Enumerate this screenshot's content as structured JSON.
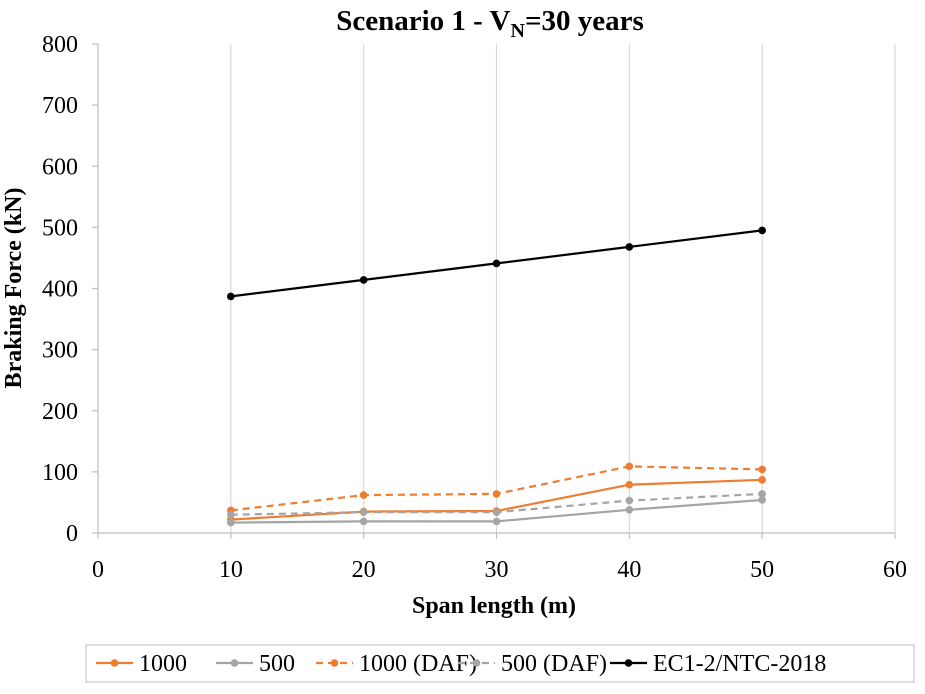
{
  "chart_data": {
    "type": "line",
    "title_prefix": "Scenario 1 - V",
    "title_sub": "N",
    "title_suffix": "=30 years",
    "xlabel": "Span length (m)",
    "ylabel": "Braking Force (kN)",
    "xlim": [
      0,
      60
    ],
    "ylim": [
      0,
      800
    ],
    "xticks": [
      0,
      10,
      20,
      30,
      40,
      50,
      60
    ],
    "yticks": [
      0,
      100,
      200,
      300,
      400,
      500,
      600,
      700,
      800
    ],
    "grid": "vertical",
    "legend_position": "bottom",
    "x": [
      10,
      20,
      30,
      40,
      50
    ],
    "series": [
      {
        "name": "1000",
        "values": [
          22,
          35,
          36,
          79,
          87
        ],
        "color": "#ED7D31",
        "dash": "solid"
      },
      {
        "name": "500",
        "values": [
          17,
          19,
          19,
          38,
          54
        ],
        "color": "#A5A5A5",
        "dash": "solid"
      },
      {
        "name": "1000 (DAF)",
        "values": [
          37,
          62,
          64,
          109,
          104
        ],
        "color": "#ED7D31",
        "dash": "dashed"
      },
      {
        "name": "500 (DAF)",
        "values": [
          30,
          34,
          34,
          53,
          64
        ],
        "color": "#A5A5A5",
        "dash": "dashed"
      },
      {
        "name": "EC1-2/NTC-2018",
        "values": [
          387,
          414,
          441,
          468,
          495
        ],
        "color": "#000000",
        "dash": "solid"
      }
    ]
  }
}
